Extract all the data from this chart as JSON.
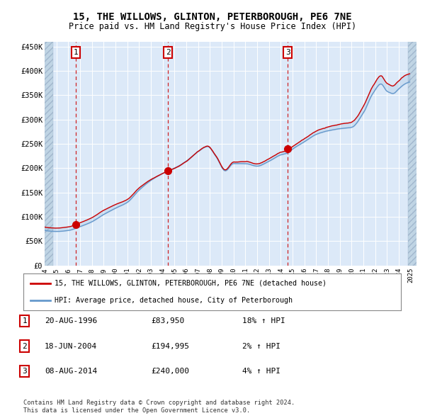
{
  "title1": "15, THE WILLOWS, GLINTON, PETERBOROUGH, PE6 7NE",
  "title2": "Price paid vs. HM Land Registry's House Price Index (HPI)",
  "ylabel_ticks": [
    "£0",
    "£50K",
    "£100K",
    "£150K",
    "£200K",
    "£250K",
    "£300K",
    "£350K",
    "£400K",
    "£450K"
  ],
  "ytick_values": [
    0,
    50000,
    100000,
    150000,
    200000,
    250000,
    300000,
    350000,
    400000,
    450000
  ],
  "xlim_start": 1994.0,
  "xlim_end": 2025.5,
  "ylim_min": 0,
  "ylim_max": 460000,
  "sale_dates": [
    1996.63,
    2004.46,
    2014.6
  ],
  "sale_prices": [
    83950,
    194995,
    240000
  ],
  "sale_labels": [
    "1",
    "2",
    "3"
  ],
  "legend_line1": "15, THE WILLOWS, GLINTON, PETERBOROUGH, PE6 7NE (detached house)",
  "legend_line2": "HPI: Average price, detached house, City of Peterborough",
  "line_color_red": "#cc0000",
  "line_color_blue": "#6699cc",
  "table_rows": [
    [
      "1",
      "20-AUG-1996",
      "£83,950",
      "18% ↑ HPI"
    ],
    [
      "2",
      "18-JUN-2004",
      "£194,995",
      "2% ↑ HPI"
    ],
    [
      "3",
      "08-AUG-2014",
      "£240,000",
      "4% ↑ HPI"
    ]
  ],
  "footnote1": "Contains HM Land Registry data © Crown copyright and database right 2024.",
  "footnote2": "This data is licensed under the Open Government Licence v3.0.",
  "bg_color": "#dce9f8",
  "hatch_color": "#b8cfe0"
}
